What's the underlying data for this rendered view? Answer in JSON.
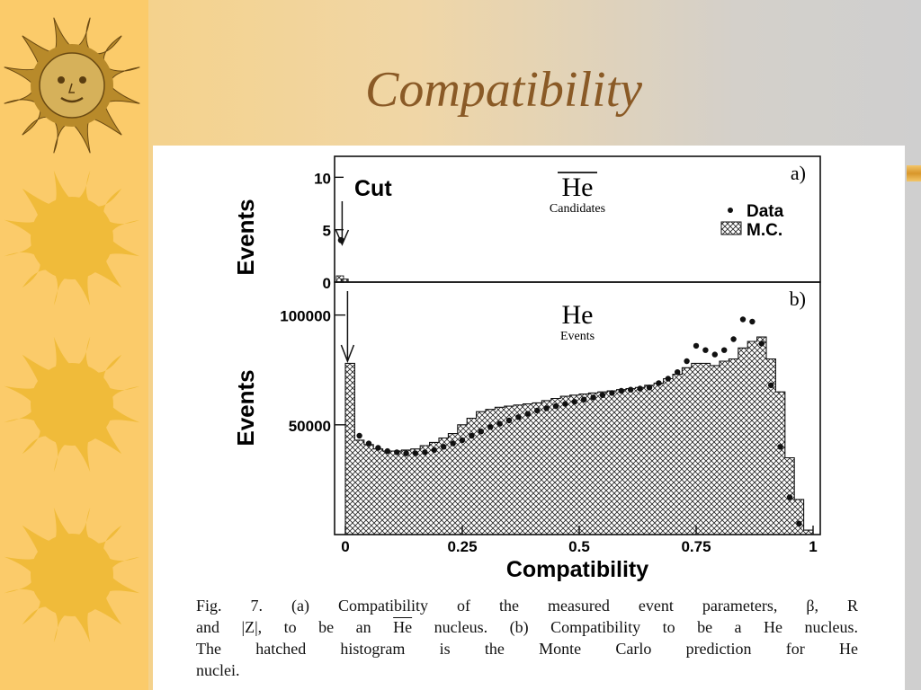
{
  "slide": {
    "title": "Compatibility",
    "caption": {
      "lines": [
        "Fig. 7. (a) Compatibility of the measured event parameters, β, R",
        "and |Z|, to be an He nucleus. (b) Compatibility to be a He nucleus.",
        "The hatched histogram is the Monte Carlo prediction for He",
        "nuclei."
      ]
    },
    "colors": {
      "title": "#8a5a26",
      "sidebar": "#fbcb6a",
      "sun": "#f0bb3a"
    },
    "decor": {
      "icons": [
        "metal-sun-face-icon",
        "sun-icon",
        "sun-icon",
        "sun-icon"
      ]
    }
  },
  "chart_data": [
    {
      "type": "bar",
      "panel_label": "a)",
      "title": "He",
      "title_overline": true,
      "subtitle": "Candidates",
      "ylabel": "Events",
      "ylim": [
        0,
        12
      ],
      "yticks": [
        0,
        5,
        10
      ],
      "xlim": [
        0,
        1
      ],
      "annotation": "Cut",
      "cut_position": 0.02,
      "legend": {
        "position": "top-right",
        "entries": [
          "Data",
          "M.C."
        ]
      },
      "series": [
        {
          "name": "Data",
          "kind": "points",
          "x": [
            0.01
          ],
          "y": [
            4
          ]
        },
        {
          "name": "M.C.",
          "kind": "hatched-histogram",
          "x": [
            0.0,
            0.01
          ],
          "y": [
            0.6,
            0.3
          ]
        }
      ]
    },
    {
      "type": "bar",
      "panel_label": "b)",
      "title": "He",
      "subtitle": "Events",
      "xlabel": "Compatibility",
      "ylabel": "Events",
      "xlim": [
        0,
        1
      ],
      "xticks": [
        "0",
        "0.25",
        "0.5",
        "0.75",
        "1"
      ],
      "ylim": [
        0,
        115000
      ],
      "yticks": [
        50000,
        100000
      ],
      "cut_position": 0.02,
      "series": [
        {
          "name": "M.C.",
          "kind": "hatched-histogram",
          "bin_width": 0.02,
          "x": [
            0.0,
            0.02,
            0.04,
            0.06,
            0.08,
            0.1,
            0.12,
            0.14,
            0.16,
            0.18,
            0.2,
            0.22,
            0.24,
            0.26,
            0.28,
            0.3,
            0.32,
            0.34,
            0.36,
            0.38,
            0.4,
            0.42,
            0.44,
            0.46,
            0.48,
            0.5,
            0.52,
            0.54,
            0.56,
            0.58,
            0.6,
            0.62,
            0.64,
            0.66,
            0.68,
            0.7,
            0.72,
            0.74,
            0.76,
            0.78,
            0.8,
            0.82,
            0.84,
            0.86,
            0.88,
            0.9,
            0.92,
            0.94,
            0.96,
            0.98
          ],
          "y": [
            78000,
            43000,
            41000,
            39000,
            38000,
            38000,
            38500,
            39000,
            40500,
            42000,
            44000,
            46000,
            50000,
            53000,
            56000,
            57000,
            58000,
            58500,
            59000,
            59500,
            60000,
            61000,
            62000,
            63000,
            63500,
            64000,
            64500,
            65000,
            65500,
            66000,
            66500,
            67000,
            68000,
            69000,
            71000,
            73000,
            76000,
            78000,
            78000,
            77000,
            79000,
            80000,
            85000,
            88000,
            90000,
            80000,
            65000,
            35000,
            16000,
            2000
          ]
        },
        {
          "name": "Data",
          "kind": "points",
          "x": [
            0.03,
            0.05,
            0.07,
            0.09,
            0.11,
            0.13,
            0.15,
            0.17,
            0.19,
            0.21,
            0.23,
            0.25,
            0.27,
            0.29,
            0.31,
            0.33,
            0.35,
            0.37,
            0.39,
            0.41,
            0.43,
            0.45,
            0.47,
            0.49,
            0.51,
            0.53,
            0.55,
            0.57,
            0.59,
            0.61,
            0.63,
            0.65,
            0.67,
            0.69,
            0.71,
            0.73,
            0.75,
            0.77,
            0.79,
            0.81,
            0.83,
            0.85,
            0.87,
            0.89,
            0.91,
            0.93,
            0.95,
            0.97
          ],
          "y": [
            45000,
            41500,
            39500,
            38000,
            37500,
            37000,
            37000,
            37500,
            38500,
            40000,
            41500,
            43000,
            45000,
            47000,
            49000,
            50500,
            52000,
            53500,
            55000,
            56500,
            57500,
            58500,
            59500,
            60500,
            61500,
            62500,
            63500,
            64500,
            65500,
            66000,
            66500,
            67000,
            69000,
            71000,
            74000,
            79000,
            86000,
            84000,
            82000,
            84000,
            89000,
            98000,
            97000,
            87000,
            68000,
            40000,
            17000,
            5000
          ]
        }
      ]
    }
  ]
}
